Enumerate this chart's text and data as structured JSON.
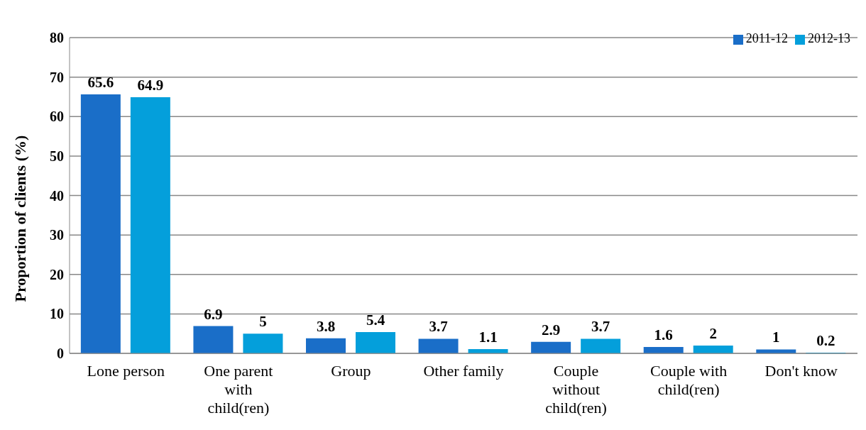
{
  "chart_data": {
    "type": "bar",
    "ylabel": "Proportion of clients (%)",
    "categories": [
      "Lone person",
      "One parent with child(ren)",
      "Group",
      "Other family",
      "Couple without child(ren)",
      "Couple with child(ren)",
      "Don't know"
    ],
    "series": [
      {
        "name": "2011-12",
        "color": "#1a6ec8",
        "values": [
          65.6,
          6.9,
          3.8,
          3.7,
          2.9,
          1.6,
          1
        ]
      },
      {
        "name": "2012-13",
        "color": "#049fdb",
        "values": [
          64.9,
          5,
          5.4,
          1.1,
          3.7,
          2,
          0.2
        ]
      }
    ],
    "ylim": [
      0,
      80
    ],
    "yticks": [
      0,
      10,
      20,
      30,
      40,
      50,
      60,
      70,
      80
    ],
    "grid": "y",
    "legend": "top right",
    "data_labels": true
  }
}
